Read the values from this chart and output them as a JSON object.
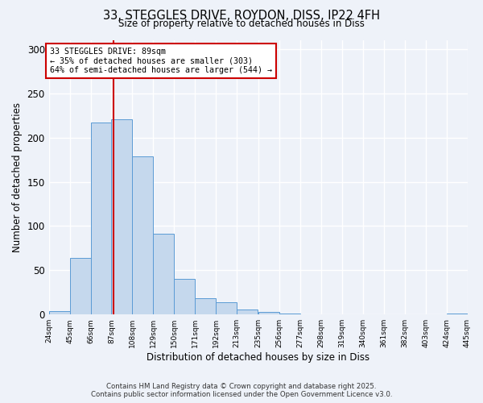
{
  "title_line1": "33, STEGGLES DRIVE, ROYDON, DISS, IP22 4FH",
  "title_line2": "Size of property relative to detached houses in Diss",
  "xlabel": "Distribution of detached houses by size in Diss",
  "ylabel": "Number of detached properties",
  "bar_values": [
    4,
    64,
    217,
    221,
    179,
    91,
    40,
    18,
    14,
    6,
    3,
    1,
    0,
    0,
    0,
    0,
    0,
    0,
    0,
    1
  ],
  "bin_edges": [
    24,
    45,
    66,
    87,
    108,
    129,
    150,
    171,
    192,
    213,
    235,
    256,
    277,
    298,
    319,
    340,
    361,
    382,
    403,
    424,
    445
  ],
  "tick_labels": [
    "24sqm",
    "45sqm",
    "66sqm",
    "87sqm",
    "108sqm",
    "129sqm",
    "150sqm",
    "171sqm",
    "192sqm",
    "213sqm",
    "235sqm",
    "256sqm",
    "277sqm",
    "298sqm",
    "319sqm",
    "340sqm",
    "361sqm",
    "382sqm",
    "403sqm",
    "424sqm",
    "445sqm"
  ],
  "bar_color": "#c5d8ed",
  "bar_edge_color": "#5b9bd5",
  "vline_color": "#cc0000",
  "vline_x": 89,
  "annotation_title": "33 STEGGLES DRIVE: 89sqm",
  "annotation_line2": "← 35% of detached houses are smaller (303)",
  "annotation_line3": "64% of semi-detached houses are larger (544) →",
  "annotation_box_color": "#ffffff",
  "annotation_box_edge": "#cc0000",
  "ylim": [
    0,
    310
  ],
  "yticks": [
    0,
    50,
    100,
    150,
    200,
    250,
    300
  ],
  "footer_line1": "Contains HM Land Registry data © Crown copyright and database right 2025.",
  "footer_line2": "Contains public sector information licensed under the Open Government Licence v3.0.",
  "bg_color": "#eef2f9"
}
